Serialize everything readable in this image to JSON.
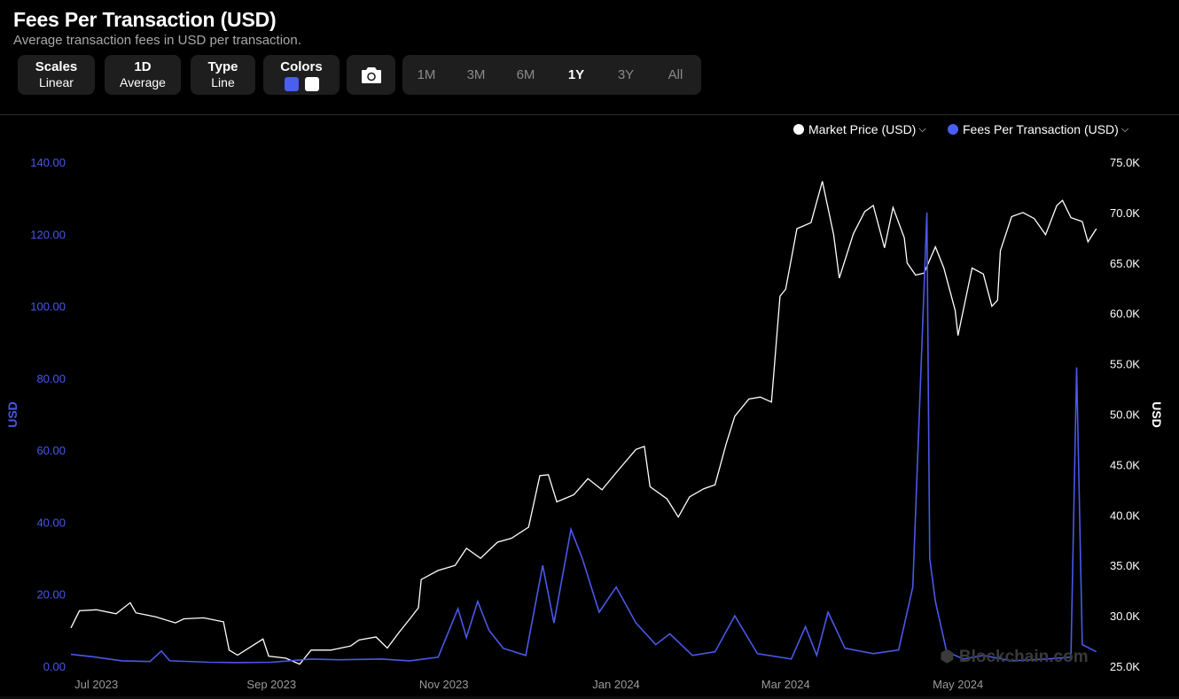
{
  "header": {
    "title": "Fees Per Transaction (USD)",
    "subtitle": "Average transaction fees in USD per transaction."
  },
  "controls": {
    "scales": {
      "label": "Scales",
      "value": "Linear"
    },
    "interval": {
      "label": "1D",
      "value": "Average"
    },
    "type": {
      "label": "Type",
      "value": "Line"
    },
    "colors": {
      "label": "Colors",
      "swatch_primary": "#4a5ef0",
      "swatch_secondary": "#ffffff"
    },
    "camera_icon": "camera-icon",
    "ranges": [
      "1M",
      "3M",
      "6M",
      "1Y",
      "3Y",
      "All"
    ],
    "active_range": "1Y"
  },
  "legend": {
    "market_price": "Market Price (USD)",
    "fees": "Fees Per Transaction (USD)"
  },
  "watermark": "Blockchain.com",
  "colors": {
    "fees": "#4a58e8",
    "price": "#ffffff",
    "background": "#000000"
  },
  "chart_data": {
    "type": "line",
    "title": "Fees Per Transaction (USD)",
    "x_ticks": [
      "Jul 2023",
      "Sep 2023",
      "Nov 2023",
      "Jan 2024",
      "Mar 2024",
      "May 2024"
    ],
    "y_left": {
      "label": "USD",
      "ticks": [
        "0.00",
        "20.00",
        "40.00",
        "60.00",
        "80.00",
        "100.00",
        "120.00",
        "140.00"
      ],
      "range": [
        0,
        140
      ]
    },
    "y_right": {
      "label": "USD",
      "ticks": [
        "25.0K",
        "30.0K",
        "35.0K",
        "40.0K",
        "45.0K",
        "50.0K",
        "55.0K",
        "60.0K",
        "65.0K",
        "70.0K",
        "75.0K"
      ],
      "range": [
        25000,
        75000
      ]
    },
    "x_range": [
      "2023-06-22",
      "2024-06-20"
    ],
    "legend_position": "top-right",
    "grid": false,
    "series": [
      {
        "name": "Market Price (USD)",
        "axis": "right",
        "points": [
          [
            "2023-06-22",
            28800
          ],
          [
            "2023-06-25",
            30500
          ],
          [
            "2023-07-01",
            30600
          ],
          [
            "2023-07-08",
            30200
          ],
          [
            "2023-07-13",
            31300
          ],
          [
            "2023-07-15",
            30300
          ],
          [
            "2023-07-22",
            29900
          ],
          [
            "2023-07-29",
            29300
          ],
          [
            "2023-08-01",
            29700
          ],
          [
            "2023-08-08",
            29800
          ],
          [
            "2023-08-15",
            29400
          ],
          [
            "2023-08-17",
            26600
          ],
          [
            "2023-08-20",
            26100
          ],
          [
            "2023-08-29",
            27700
          ],
          [
            "2023-08-31",
            26000
          ],
          [
            "2023-09-06",
            25800
          ],
          [
            "2023-09-11",
            25200
          ],
          [
            "2023-09-15",
            26600
          ],
          [
            "2023-09-22",
            26600
          ],
          [
            "2023-09-29",
            27000
          ],
          [
            "2023-10-02",
            27600
          ],
          [
            "2023-10-08",
            27900
          ],
          [
            "2023-10-12",
            26800
          ],
          [
            "2023-10-16",
            28300
          ],
          [
            "2023-10-20",
            29700
          ],
          [
            "2023-10-23",
            30800
          ],
          [
            "2023-10-24",
            33600
          ],
          [
            "2023-10-30",
            34500
          ],
          [
            "2023-11-05",
            35000
          ],
          [
            "2023-11-09",
            36700
          ],
          [
            "2023-11-14",
            35700
          ],
          [
            "2023-11-20",
            37300
          ],
          [
            "2023-11-25",
            37700
          ],
          [
            "2023-12-01",
            38800
          ],
          [
            "2023-12-05",
            43900
          ],
          [
            "2023-12-08",
            44000
          ],
          [
            "2023-12-11",
            41300
          ],
          [
            "2023-12-17",
            42000
          ],
          [
            "2023-12-22",
            43600
          ],
          [
            "2023-12-27",
            42500
          ],
          [
            "2024-01-01",
            44200
          ],
          [
            "2024-01-08",
            46500
          ],
          [
            "2024-01-11",
            46800
          ],
          [
            "2024-01-13",
            42800
          ],
          [
            "2024-01-19",
            41600
          ],
          [
            "2024-01-23",
            39800
          ],
          [
            "2024-01-27",
            41800
          ],
          [
            "2024-02-01",
            42600
          ],
          [
            "2024-02-05",
            43000
          ],
          [
            "2024-02-09",
            47100
          ],
          [
            "2024-02-12",
            49800
          ],
          [
            "2024-02-17",
            51500
          ],
          [
            "2024-02-21",
            51700
          ],
          [
            "2024-02-25",
            51200
          ],
          [
            "2024-02-28",
            61700
          ],
          [
            "2024-03-01",
            62400
          ],
          [
            "2024-03-05",
            68400
          ],
          [
            "2024-03-10",
            69000
          ],
          [
            "2024-03-14",
            73100
          ],
          [
            "2024-03-18",
            67800
          ],
          [
            "2024-03-20",
            63500
          ],
          [
            "2024-03-25",
            67900
          ],
          [
            "2024-03-29",
            70100
          ],
          [
            "2024-04-01",
            70700
          ],
          [
            "2024-04-05",
            66500
          ],
          [
            "2024-04-08",
            70500
          ],
          [
            "2024-04-12",
            67500
          ],
          [
            "2024-04-13",
            65000
          ],
          [
            "2024-04-16",
            63800
          ],
          [
            "2024-04-19",
            64000
          ],
          [
            "2024-04-23",
            66600
          ],
          [
            "2024-04-26",
            64500
          ],
          [
            "2024-04-30",
            60300
          ],
          [
            "2024-05-01",
            57800
          ],
          [
            "2024-05-06",
            64500
          ],
          [
            "2024-05-10",
            63900
          ],
          [
            "2024-05-13",
            60700
          ],
          [
            "2024-05-15",
            61300
          ],
          [
            "2024-05-16",
            66200
          ],
          [
            "2024-05-20",
            69600
          ],
          [
            "2024-05-24",
            70000
          ],
          [
            "2024-05-28",
            69400
          ],
          [
            "2024-06-01",
            67800
          ],
          [
            "2024-06-05",
            70700
          ],
          [
            "2024-06-07",
            71200
          ],
          [
            "2024-06-10",
            69500
          ],
          [
            "2024-06-14",
            69100
          ],
          [
            "2024-06-16",
            67100
          ],
          [
            "2024-06-19",
            68400
          ]
        ]
      },
      {
        "name": "Fees Per Transaction (USD)",
        "axis": "left",
        "points": [
          [
            "2023-06-22",
            3.3
          ],
          [
            "2023-06-30",
            2.6
          ],
          [
            "2023-07-10",
            1.5
          ],
          [
            "2023-07-20",
            1.3
          ],
          [
            "2023-07-24",
            4.2
          ],
          [
            "2023-07-27",
            1.5
          ],
          [
            "2023-08-10",
            1.1
          ],
          [
            "2023-08-20",
            1.0
          ],
          [
            "2023-09-01",
            1.1
          ],
          [
            "2023-09-15",
            2.0
          ],
          [
            "2023-09-25",
            1.8
          ],
          [
            "2023-10-10",
            2.0
          ],
          [
            "2023-10-20",
            1.5
          ],
          [
            "2023-10-30",
            2.5
          ],
          [
            "2023-11-06",
            16.0
          ],
          [
            "2023-11-09",
            8.0
          ],
          [
            "2023-11-13",
            18.0
          ],
          [
            "2023-11-17",
            10.0
          ],
          [
            "2023-11-22",
            5.0
          ],
          [
            "2023-11-30",
            3.0
          ],
          [
            "2023-12-06",
            28.0
          ],
          [
            "2023-12-10",
            12.0
          ],
          [
            "2023-12-16",
            38.0
          ],
          [
            "2023-12-20",
            30.0
          ],
          [
            "2023-12-26",
            15.0
          ],
          [
            "2024-01-01",
            22.0
          ],
          [
            "2024-01-08",
            12.0
          ],
          [
            "2024-01-15",
            6.0
          ],
          [
            "2024-01-20",
            9.0
          ],
          [
            "2024-01-28",
            3.0
          ],
          [
            "2024-02-05",
            4.0
          ],
          [
            "2024-02-12",
            14.0
          ],
          [
            "2024-02-20",
            3.5
          ],
          [
            "2024-03-03",
            2.0
          ],
          [
            "2024-03-08",
            11.0
          ],
          [
            "2024-03-12",
            3.0
          ],
          [
            "2024-03-16",
            15.0
          ],
          [
            "2024-03-22",
            5.0
          ],
          [
            "2024-04-01",
            3.5
          ],
          [
            "2024-04-10",
            4.5
          ],
          [
            "2024-04-15",
            22.0
          ],
          [
            "2024-04-20",
            126.0
          ],
          [
            "2024-04-21",
            30.0
          ],
          [
            "2024-04-23",
            18.0
          ],
          [
            "2024-04-27",
            4.0
          ],
          [
            "2024-05-03",
            2.0
          ],
          [
            "2024-05-10",
            3.0
          ],
          [
            "2024-05-20",
            1.5
          ],
          [
            "2024-06-01",
            2.0
          ],
          [
            "2024-06-10",
            2.5
          ],
          [
            "2024-06-12",
            83.0
          ],
          [
            "2024-06-14",
            6.0
          ],
          [
            "2024-06-19",
            4.0
          ]
        ]
      }
    ]
  }
}
